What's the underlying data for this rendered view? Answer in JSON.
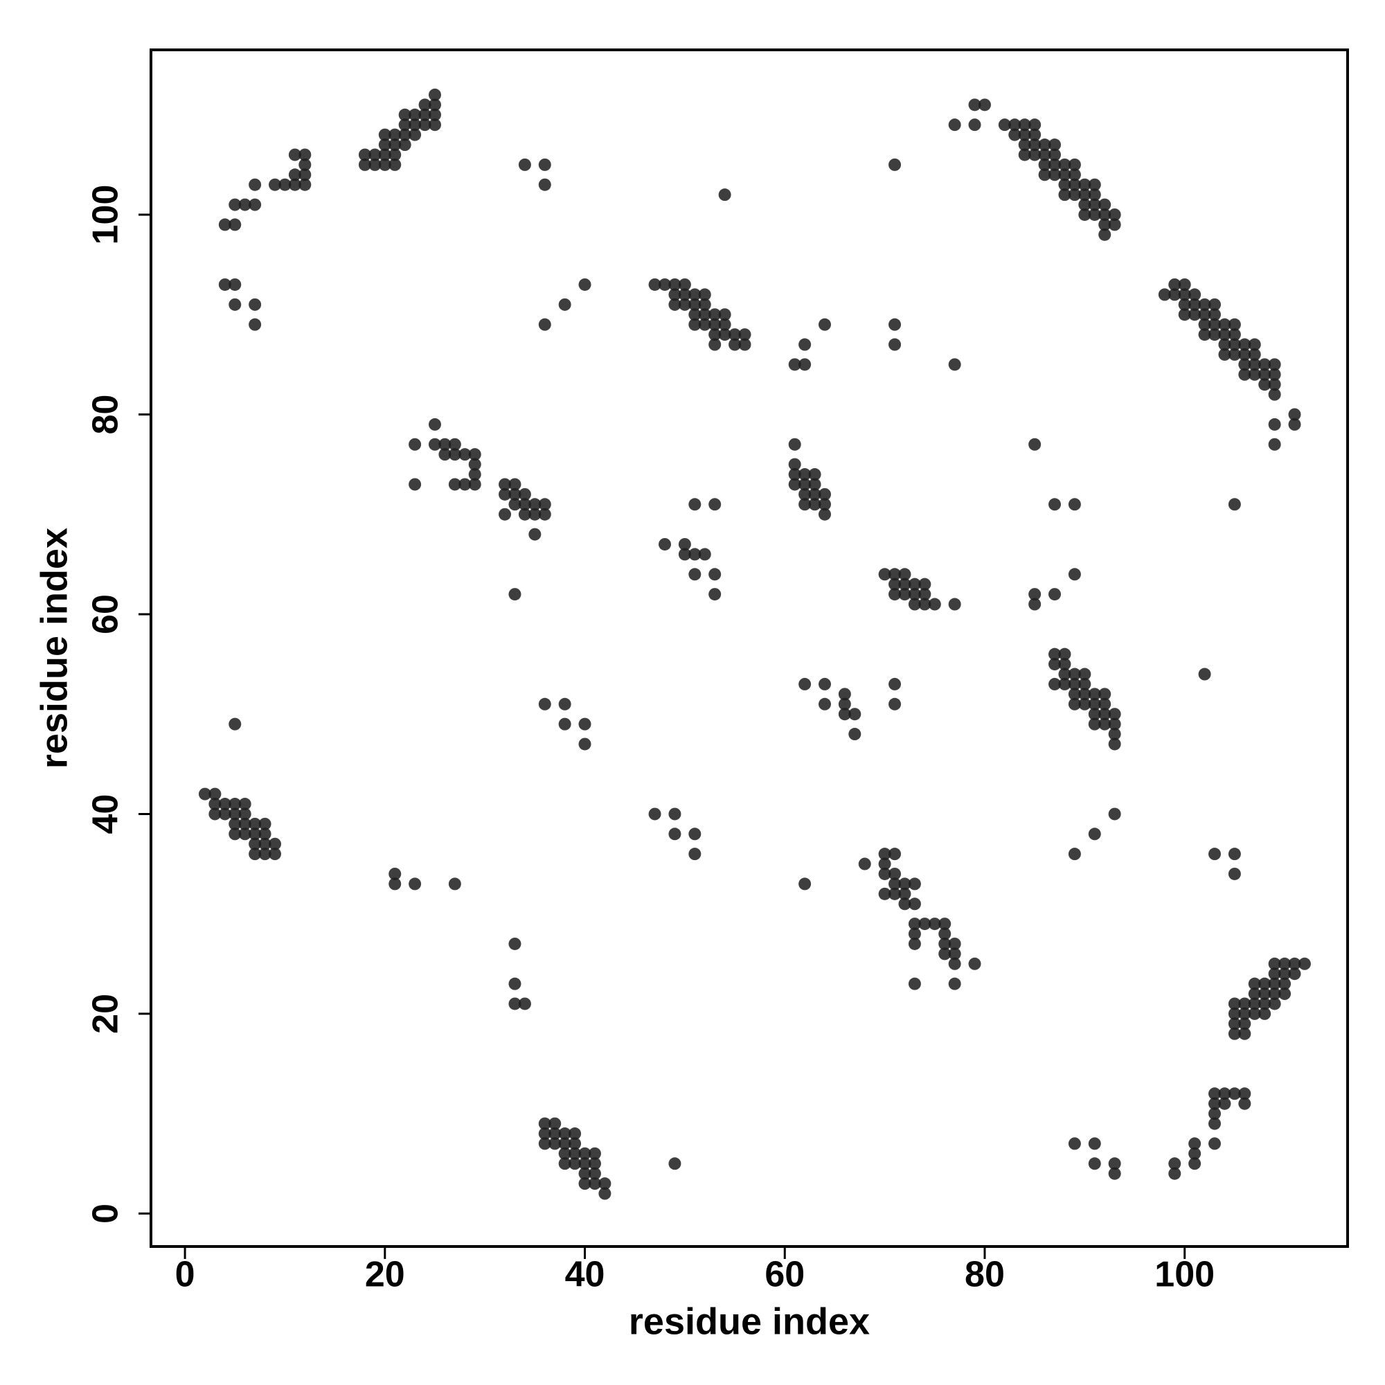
{
  "chart_data": {
    "type": "scatter",
    "x_label": "residue index",
    "y_label": "residue index",
    "color": "#1c1c1c",
    "grid": false,
    "xlim": [
      -3.4,
      116.3
    ],
    "ylim": [
      -3.3,
      116.5
    ],
    "xticks": [
      0,
      20,
      40,
      60,
      80,
      100
    ],
    "yticks": [
      0,
      20,
      40,
      60,
      80,
      100
    ],
    "x": [
      36,
      37,
      36,
      37,
      38,
      39,
      36,
      37,
      38,
      39,
      38,
      39,
      40,
      41,
      38,
      39,
      40,
      41,
      40,
      41,
      40,
      41,
      42,
      42,
      2,
      3,
      3,
      4,
      5,
      6,
      3,
      4,
      5,
      6,
      5,
      6,
      7,
      8,
      5,
      6,
      7,
      8,
      7,
      8,
      9,
      7,
      8,
      9,
      18,
      19,
      20,
      21,
      18,
      19,
      20,
      21,
      20,
      21,
      22,
      20,
      21,
      22,
      23,
      22,
      23,
      24,
      25,
      22,
      23,
      24,
      25,
      24,
      25,
      25,
      4,
      5,
      5,
      6,
      7,
      7,
      9,
      10,
      11,
      12,
      11,
      12,
      12,
      11,
      12,
      4,
      5,
      5,
      7,
      7,
      5,
      21,
      21,
      23,
      27,
      33,
      33,
      33,
      34,
      34,
      36,
      36,
      36,
      38,
      40,
      36,
      38,
      38,
      40,
      40,
      49,
      54,
      47,
      49,
      49,
      51,
      51,
      48,
      50,
      50,
      51,
      52,
      51,
      53,
      53,
      51,
      53,
      25,
      23,
      25,
      26,
      27,
      26,
      27,
      28,
      29,
      29,
      29,
      27,
      28,
      29,
      23,
      32,
      33,
      32,
      33,
      34,
      33,
      34,
      35,
      36,
      32,
      34,
      35,
      36,
      35,
      33,
      47,
      48,
      49,
      50,
      49,
      50,
      51,
      52,
      49,
      50,
      51,
      52,
      51,
      52,
      53,
      54,
      51,
      52,
      53,
      54,
      53,
      54,
      55,
      56,
      53,
      55,
      56,
      61,
      61,
      61,
      62,
      63,
      61,
      62,
      63,
      62,
      63,
      64,
      62,
      63,
      64,
      64,
      61,
      62,
      62,
      64,
      71,
      71,
      77,
      71,
      70,
      71,
      72,
      71,
      72,
      73,
      74,
      71,
      72,
      73,
      74,
      73,
      74,
      75,
      77,
      62,
      64,
      64,
      66,
      66,
      66,
      67,
      67,
      71,
      71,
      68,
      70,
      71,
      70,
      70,
      71,
      70,
      71,
      72,
      73,
      71,
      72,
      72,
      73,
      73,
      74,
      75,
      76,
      73,
      76,
      77,
      73,
      76,
      76,
      77,
      77,
      79,
      73,
      77,
      62,
      77,
      79,
      79,
      80,
      82,
      83,
      84,
      85,
      83,
      84,
      85,
      84,
      85,
      86,
      87,
      84,
      85,
      86,
      87,
      86,
      87,
      88,
      89,
      86,
      87,
      88,
      89,
      88,
      89,
      90,
      91,
      88,
      89,
      90,
      91,
      90,
      91,
      92,
      90,
      91,
      92,
      93,
      92,
      93,
      92,
      98,
      99,
      100,
      99,
      100,
      101,
      100,
      101,
      102,
      103,
      100,
      101,
      102,
      103,
      102,
      103,
      104,
      105,
      102,
      103,
      104,
      105,
      104,
      105,
      106,
      107,
      104,
      105,
      106,
      107,
      106,
      107,
      108,
      109,
      106,
      107,
      108,
      109,
      108,
      109,
      109,
      109,
      111,
      111,
      109,
      85,
      87,
      89,
      105,
      85,
      85,
      87,
      89,
      102,
      87,
      88,
      87,
      88,
      88,
      89,
      90,
      87,
      88,
      89,
      90,
      89,
      90,
      91,
      92,
      89,
      90,
      91,
      92,
      91,
      92,
      93,
      91,
      92,
      93,
      93,
      93,
      93,
      91,
      89,
      103,
      105,
      105,
      105,
      106,
      107,
      105,
      106,
      107,
      108,
      105,
      106,
      105,
      106,
      107,
      108,
      109,
      110,
      107,
      108,
      109,
      108,
      109,
      110,
      109,
      110,
      111,
      109,
      110,
      111,
      112,
      89,
      91,
      91,
      93,
      93,
      99,
      99,
      101,
      101,
      101,
      103,
      103,
      103,
      103,
      103,
      104,
      104,
      105,
      106,
      106
    ],
    "y": [
      9,
      9,
      8,
      8,
      8,
      8,
      7,
      7,
      7,
      7,
      6,
      6,
      6,
      6,
      5,
      5,
      5,
      5,
      4,
      4,
      3,
      3,
      3,
      2,
      42,
      42,
      41,
      41,
      41,
      41,
      40,
      40,
      40,
      40,
      39,
      39,
      39,
      39,
      38,
      38,
      38,
      38,
      37,
      37,
      37,
      36,
      36,
      36,
      105,
      105,
      105,
      105,
      106,
      106,
      106,
      106,
      107,
      107,
      107,
      108,
      108,
      108,
      108,
      109,
      109,
      109,
      109,
      110,
      110,
      110,
      110,
      111,
      111,
      112,
      99,
      99,
      101,
      101,
      101,
      103,
      103,
      103,
      103,
      103,
      104,
      104,
      105,
      106,
      106,
      93,
      93,
      91,
      91,
      89,
      49,
      34,
      33,
      33,
      33,
      27,
      23,
      21,
      21,
      105,
      105,
      103,
      89,
      91,
      93,
      51,
      51,
      49,
      49,
      47,
      5,
      102,
      40,
      40,
      38,
      38,
      36,
      67,
      67,
      66,
      66,
      66,
      64,
      64,
      62,
      71,
      71,
      79,
      77,
      77,
      77,
      77,
      76,
      76,
      76,
      76,
      75,
      74,
      73,
      73,
      73,
      73,
      73,
      73,
      72,
      72,
      72,
      71,
      71,
      71,
      71,
      70,
      70,
      70,
      70,
      68,
      62,
      93,
      93,
      93,
      93,
      92,
      92,
      92,
      92,
      91,
      91,
      91,
      91,
      90,
      90,
      90,
      90,
      89,
      89,
      89,
      89,
      88,
      88,
      88,
      88,
      87,
      87,
      87,
      77,
      75,
      74,
      74,
      74,
      73,
      73,
      73,
      72,
      72,
      72,
      71,
      71,
      71,
      70,
      85,
      85,
      87,
      89,
      89,
      87,
      85,
      105,
      64,
      64,
      64,
      63,
      63,
      63,
      63,
      62,
      62,
      62,
      62,
      61,
      61,
      61,
      61,
      53,
      53,
      51,
      52,
      51,
      50,
      50,
      48,
      53,
      51,
      35,
      36,
      36,
      35,
      34,
      34,
      32,
      33,
      33,
      33,
      32,
      32,
      31,
      31,
      29,
      29,
      29,
      29,
      28,
      28,
      27,
      27,
      27,
      26,
      26,
      25,
      25,
      23,
      23,
      33,
      109,
      109,
      111,
      111,
      109,
      109,
      109,
      109,
      108,
      108,
      108,
      107,
      107,
      107,
      107,
      106,
      106,
      106,
      106,
      105,
      105,
      105,
      105,
      104,
      104,
      104,
      104,
      103,
      103,
      103,
      103,
      102,
      102,
      102,
      102,
      101,
      101,
      101,
      100,
      100,
      100,
      100,
      99,
      99,
      98,
      92,
      93,
      93,
      92,
      92,
      92,
      91,
      91,
      91,
      91,
      90,
      90,
      90,
      90,
      89,
      89,
      89,
      89,
      88,
      88,
      88,
      88,
      87,
      87,
      87,
      87,
      86,
      86,
      86,
      86,
      85,
      85,
      85,
      85,
      84,
      84,
      84,
      84,
      83,
      83,
      82,
      79,
      80,
      79,
      77,
      77,
      71,
      71,
      71,
      62,
      61,
      62,
      64,
      54,
      56,
      56,
      55,
      55,
      54,
      54,
      54,
      53,
      53,
      53,
      53,
      52,
      52,
      52,
      52,
      51,
      51,
      51,
      51,
      50,
      50,
      50,
      49,
      49,
      49,
      48,
      47,
      40,
      38,
      36,
      36,
      36,
      34,
      21,
      21,
      21,
      20,
      20,
      20,
      20,
      19,
      19,
      18,
      18,
      22,
      22,
      22,
      22,
      23,
      23,
      23,
      21,
      21,
      23,
      24,
      24,
      24,
      25,
      25,
      25,
      25,
      7,
      7,
      5,
      5,
      4,
      5,
      4,
      7,
      6,
      5,
      7,
      9,
      10,
      11,
      12,
      12,
      11,
      12,
      12,
      11
    ]
  }
}
